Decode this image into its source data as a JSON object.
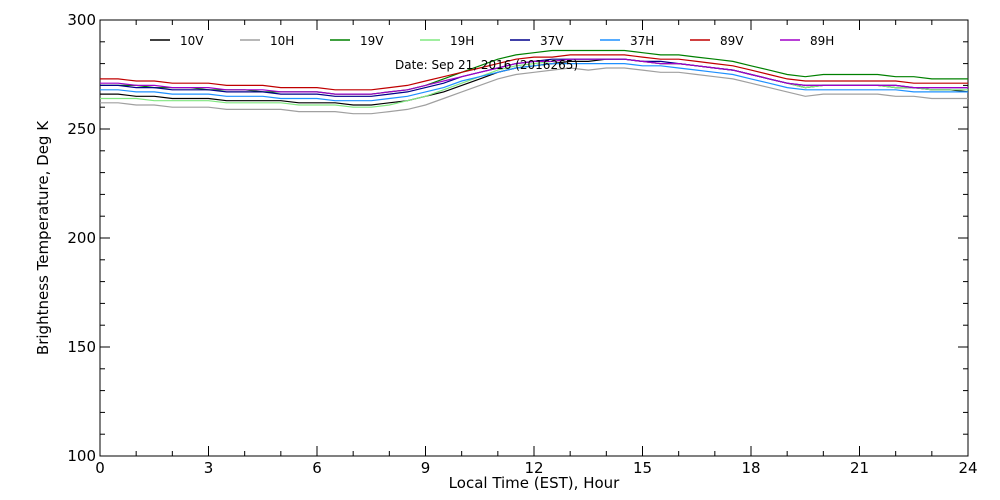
{
  "chart_data": {
    "type": "line",
    "title": "",
    "subtitle": "Date: Sep 21, 2016 (2016265)",
    "xlabel": "Local Time (EST), Hour",
    "ylabel": "Brightness Temperature, Deg K",
    "xlim": [
      0,
      24
    ],
    "ylim": [
      100,
      300
    ],
    "xticks": [
      0,
      3,
      6,
      9,
      12,
      15,
      18,
      21,
      24
    ],
    "yticks": [
      100,
      150,
      200,
      250,
      300
    ],
    "grid": false,
    "legend_position": "top",
    "x": [
      0,
      0.5,
      1,
      1.5,
      2,
      2.5,
      3,
      3.5,
      4,
      4.5,
      5,
      5.5,
      6,
      6.5,
      7,
      7.5,
      8,
      8.5,
      9,
      9.5,
      10,
      10.5,
      11,
      11.5,
      12,
      12.5,
      13,
      13.5,
      14,
      14.5,
      15,
      15.5,
      16,
      16.5,
      17,
      17.5,
      18,
      18.5,
      19,
      19.5,
      20,
      20.5,
      21,
      21.5,
      22,
      22.5,
      23,
      23.5,
      24
    ],
    "series": [
      {
        "name": "10V",
        "color": "#000000",
        "values": [
          266,
          266,
          265,
          265,
          264,
          264,
          264,
          263,
          263,
          263,
          263,
          262,
          262,
          262,
          261,
          261,
          262,
          263,
          265,
          267,
          270,
          273,
          276,
          278,
          279,
          280,
          281,
          281,
          282,
          282,
          281,
          280,
          280,
          279,
          278,
          277,
          275,
          273,
          271,
          269,
          270,
          270,
          270,
          270,
          269,
          269,
          268,
          268,
          267
        ]
      },
      {
        "name": "10H",
        "color": "#a0a0a0",
        "values": [
          262,
          262,
          261,
          261,
          260,
          260,
          260,
          259,
          259,
          259,
          259,
          258,
          258,
          258,
          257,
          257,
          258,
          259,
          261,
          264,
          267,
          270,
          273,
          275,
          276,
          277,
          278,
          277,
          278,
          278,
          277,
          276,
          276,
          275,
          274,
          273,
          271,
          269,
          267,
          265,
          266,
          266,
          266,
          266,
          265,
          265,
          264,
          264,
          264
        ]
      },
      {
        "name": "19V",
        "color": "#008000",
        "values": [
          270,
          270,
          270,
          269,
          269,
          269,
          268,
          268,
          268,
          267,
          267,
          267,
          267,
          266,
          266,
          266,
          267,
          268,
          270,
          273,
          276,
          279,
          282,
          284,
          285,
          286,
          286,
          286,
          286,
          286,
          285,
          284,
          284,
          283,
          282,
          281,
          279,
          277,
          275,
          274,
          275,
          275,
          275,
          275,
          274,
          274,
          273,
          273,
          273
        ]
      },
      {
        "name": "19H",
        "color": "#80e880",
        "values": [
          264,
          264,
          264,
          263,
          263,
          263,
          263,
          262,
          262,
          262,
          262,
          261,
          261,
          261,
          260,
          260,
          261,
          263,
          265,
          268,
          271,
          274,
          277,
          279,
          280,
          281,
          282,
          282,
          282,
          282,
          281,
          280,
          280,
          279,
          278,
          277,
          275,
          273,
          271,
          269,
          270,
          270,
          270,
          270,
          269,
          269,
          268,
          268,
          268
        ]
      },
      {
        "name": "37V",
        "color": "#00008b",
        "values": [
          270,
          270,
          269,
          269,
          268,
          268,
          268,
          267,
          267,
          267,
          266,
          266,
          266,
          265,
          265,
          265,
          266,
          267,
          269,
          271,
          274,
          276,
          278,
          280,
          281,
          282,
          282,
          282,
          282,
          282,
          281,
          281,
          280,
          279,
          278,
          277,
          275,
          273,
          271,
          270,
          270,
          270,
          270,
          270,
          270,
          269,
          269,
          269,
          269
        ]
      },
      {
        "name": "37H",
        "color": "#1e90ff",
        "values": [
          268,
          268,
          267,
          267,
          266,
          266,
          266,
          265,
          265,
          265,
          264,
          264,
          264,
          263,
          263,
          263,
          264,
          265,
          267,
          269,
          272,
          274,
          276,
          278,
          279,
          280,
          280,
          280,
          280,
          280,
          279,
          279,
          278,
          277,
          276,
          275,
          273,
          271,
          269,
          268,
          268,
          268,
          268,
          268,
          268,
          267,
          267,
          267,
          267
        ]
      },
      {
        "name": "89V",
        "color": "#c00000",
        "values": [
          273,
          273,
          272,
          272,
          271,
          271,
          271,
          270,
          270,
          270,
          269,
          269,
          269,
          268,
          268,
          268,
          269,
          270,
          272,
          274,
          276,
          278,
          280,
          282,
          283,
          283,
          284,
          284,
          284,
          284,
          283,
          282,
          282,
          281,
          280,
          279,
          277,
          275,
          273,
          272,
          272,
          272,
          272,
          272,
          272,
          271,
          271,
          271,
          271
        ]
      },
      {
        "name": "89H",
        "color": "#a000c8",
        "values": [
          271,
          271,
          270,
          270,
          269,
          269,
          269,
          268,
          268,
          268,
          267,
          267,
          267,
          266,
          266,
          266,
          267,
          268,
          270,
          272,
          274,
          276,
          278,
          280,
          281,
          281,
          282,
          282,
          282,
          282,
          281,
          280,
          280,
          279,
          278,
          277,
          275,
          273,
          271,
          270,
          270,
          270,
          270,
          270,
          270,
          269,
          269,
          269,
          269
        ]
      }
    ]
  }
}
